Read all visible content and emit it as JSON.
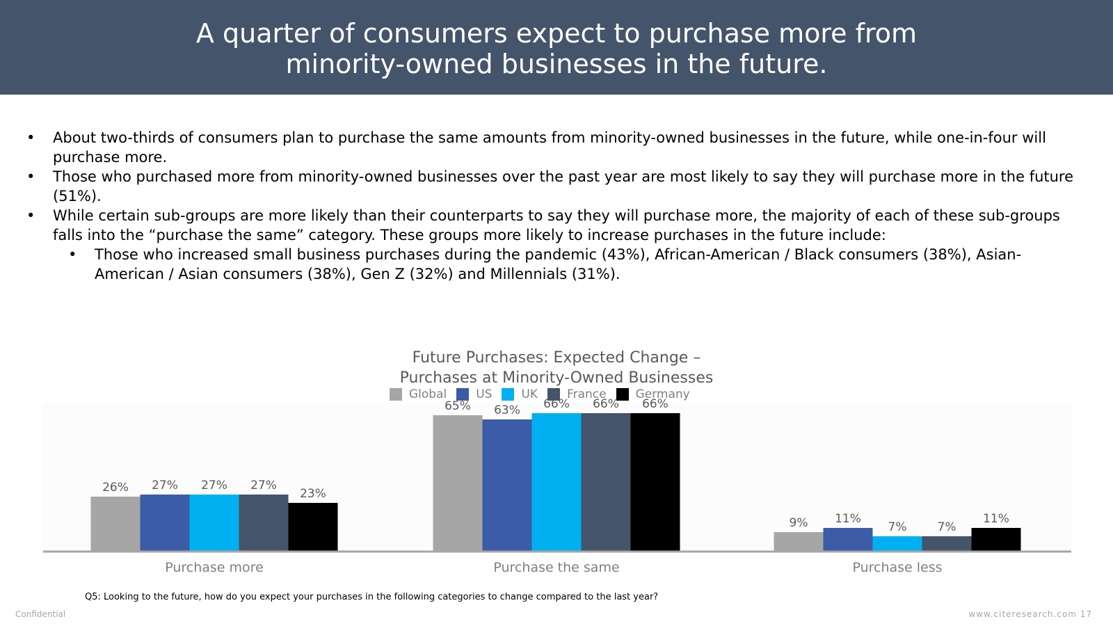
{
  "header": {
    "title_line1": "A quarter of consumers expect to purchase more from",
    "title_line2": "minority-owned businesses in the future."
  },
  "bullets": [
    {
      "marker": "•",
      "text": "About two-thirds of consumers plan to purchase the same amounts from minority-owned businesses in the future, while one-in-four will purchase more."
    },
    {
      "marker": "•",
      "text": "Those who purchased more from minority-owned businesses over the past year are most likely to say they will purchase more in the future (51%)."
    },
    {
      "marker": "•",
      "text": "While certain sub-groups are more likely than their counterparts to say they will purchase more, the majority of each of these sub-groups falls into the “purchase the same” category.  These groups more likely to increase purchases in the future include:"
    },
    {
      "marker": "•",
      "text": "Those who increased small business purchases during the pandemic (43%), African-American / Black consumers (38%), Asian-American / Asian consumers (38%), Gen Z (32%) and Millennials (31%)."
    }
  ],
  "chart_data": {
    "type": "bar",
    "title_line1": "Future Purchases: Expected Change –",
    "title_line2": "Purchases at Minority-Owned Businesses",
    "categories": [
      "Purchase more",
      "Purchase the same",
      "Purchase less"
    ],
    "series": [
      {
        "name": "Global",
        "color": "#a6a6a6",
        "values": [
          26,
          65,
          9
        ],
        "labels": [
          "26%",
          "65%",
          "9%"
        ]
      },
      {
        "name": "US",
        "color": "#3c5ca8",
        "values": [
          27,
          63,
          11
        ],
        "labels": [
          "27%",
          "63%",
          "11%"
        ]
      },
      {
        "name": "UK",
        "color": "#00b0f0",
        "values": [
          27,
          66,
          7
        ],
        "labels": [
          "27%",
          "66%",
          "7%"
        ]
      },
      {
        "name": "France",
        "color": "#44546a",
        "values": [
          27,
          66,
          7
        ],
        "labels": [
          "27%",
          "66%",
          "7%"
        ]
      },
      {
        "name": "Germany",
        "color": "#000000",
        "values": [
          23,
          66,
          11
        ],
        "labels": [
          "23%",
          "66%",
          "11%"
        ]
      }
    ],
    "legend_position": "top",
    "ylim": [
      0,
      70
    ],
    "grid": false
  },
  "footer": {
    "question": "Q5: Looking to the future, how do you expect your purchases in the following categories to change compared to the last year?",
    "left": "Confidential",
    "right": "www.citeresearch.com   17"
  }
}
